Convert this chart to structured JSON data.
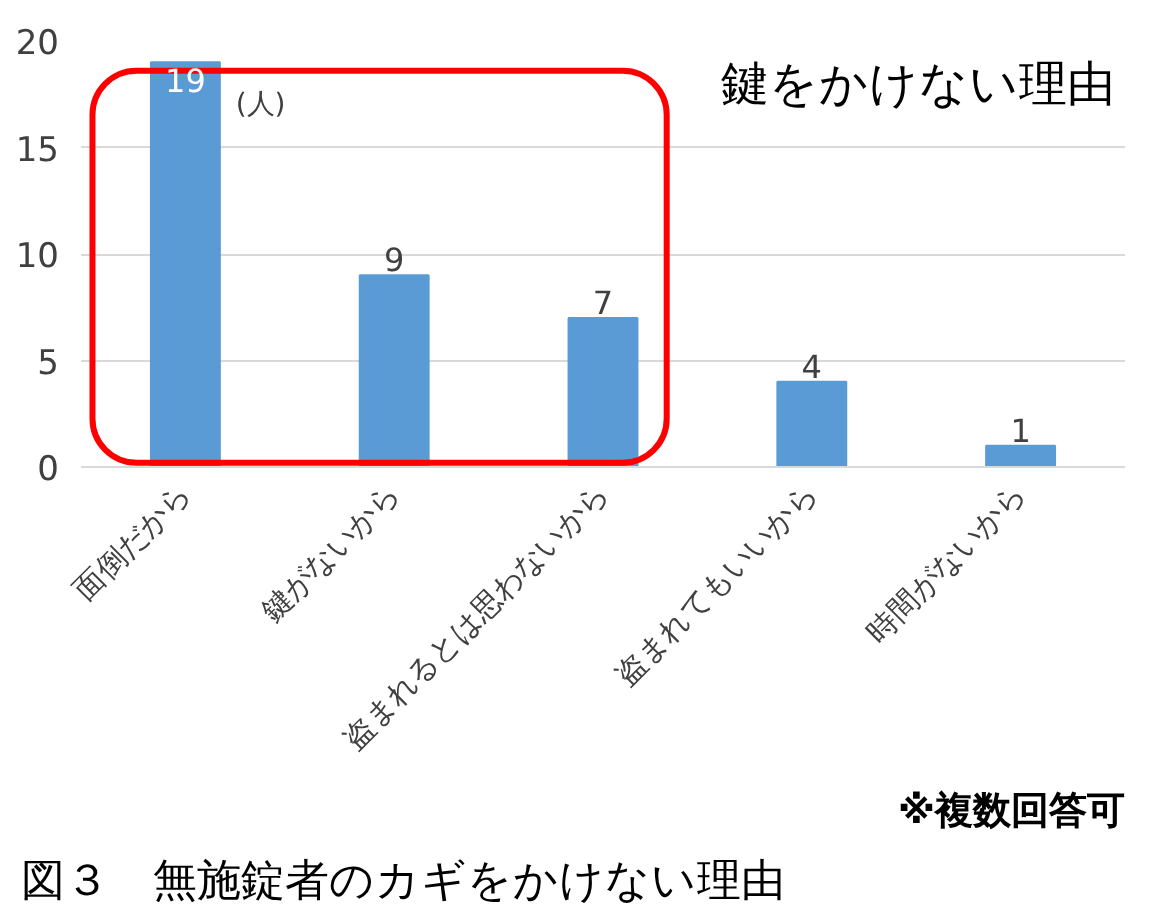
{
  "chart_data": {
    "type": "bar",
    "title": "鍵をかけない理由",
    "ylabel": "(人)",
    "categories": [
      "面倒だから",
      "鍵がないから",
      "盗まれるとは思わないから",
      "盗まれてもいいから",
      "時間がないから"
    ],
    "values": [
      19,
      9,
      7,
      4,
      1
    ],
    "color": "#5b9bd5",
    "data_labels": true,
    "ylim": [
      0,
      20
    ],
    "yticks": [
      0,
      5,
      10,
      15,
      20
    ],
    "grid": "y",
    "annotations": [
      "※複数回答可",
      "図３　無施錠者のカギをかけない理由"
    ]
  }
}
